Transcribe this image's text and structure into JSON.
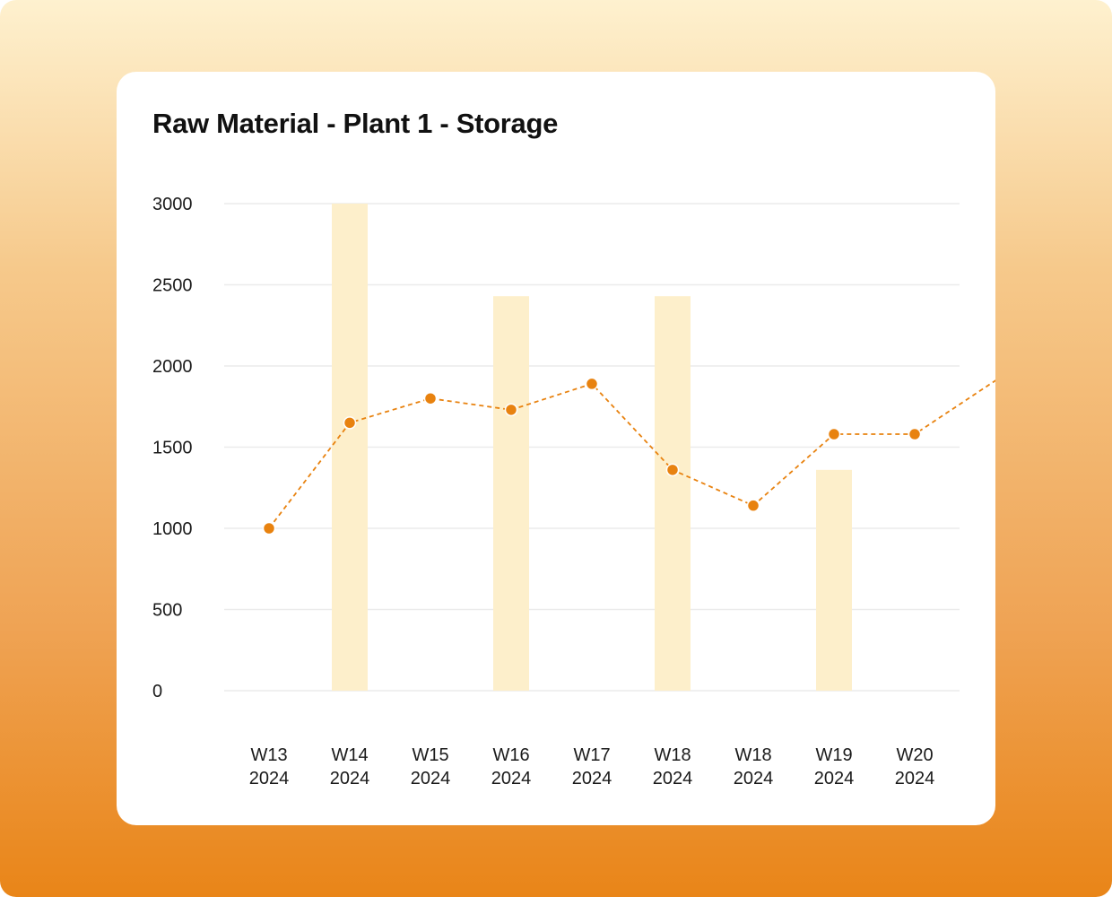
{
  "chart_data": {
    "type": "bar",
    "title": "Raw Material - Plant 1 - Storage",
    "xlabel": "",
    "ylabel": "",
    "ylim": [
      0,
      3000
    ],
    "yticks": [
      0,
      500,
      1000,
      1500,
      2000,
      2500,
      3000
    ],
    "grid": true,
    "categories": [
      [
        "W13",
        "2024"
      ],
      [
        "W14",
        "2024"
      ],
      [
        "W15",
        "2024"
      ],
      [
        "W16",
        "2024"
      ],
      [
        "W17",
        "2024"
      ],
      [
        "W18",
        "2024"
      ],
      [
        "W18",
        "2024"
      ],
      [
        "W19",
        "2024"
      ],
      [
        "W20",
        "2024"
      ]
    ],
    "series": [
      {
        "type": "bar",
        "color": "#FDEFCB",
        "values": [
          null,
          3000,
          null,
          2430,
          null,
          2430,
          null,
          1360,
          null
        ]
      },
      {
        "type": "line",
        "style": "dashed",
        "color": "#E8820F",
        "values": [
          1000,
          1650,
          1800,
          1730,
          1890,
          1360,
          1140,
          1580,
          1580
        ],
        "continues_beyond": 1910
      }
    ]
  }
}
